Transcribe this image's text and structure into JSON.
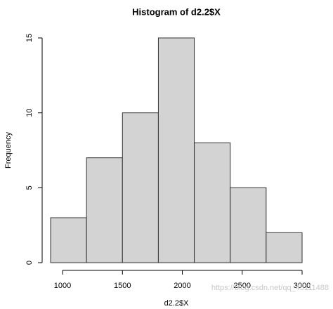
{
  "chart_data": {
    "type": "histogram",
    "title": "Histogram of d2.2$X",
    "x_label": "d2.2$X",
    "y_label": "Frequency",
    "bins": [
      900,
      1200,
      1500,
      1800,
      2100,
      2400,
      2700,
      3000
    ],
    "values": [
      3,
      7,
      10,
      15,
      8,
      5,
      2
    ],
    "color": "#d3d3d3",
    "xlim": [
      900,
      3000
    ],
    "xticks": [
      1000,
      1500,
      2000,
      2500,
      3000
    ],
    "ylim": [
      0,
      15
    ],
    "yticks": [
      0,
      5,
      10,
      15
    ],
    "watermark": "https://blog.csdn.net/qq_45111488"
  }
}
